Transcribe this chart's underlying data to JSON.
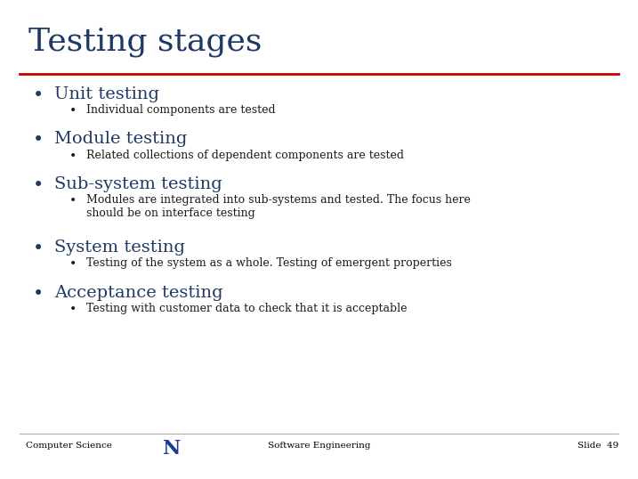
{
  "title": "Testing stages",
  "title_color": "#1F3864",
  "title_fontsize": 26,
  "separator_color": "#CC0000",
  "bg_color": "#FFFFFF",
  "bullet_color": "#1F3864",
  "sub_bullet_color": "#1a1a1a",
  "main_bullet_fontsize": 14,
  "sub_bullet_fontsize": 9,
  "items": [
    {
      "main": "Unit testing",
      "subs": [
        "Individual components are tested"
      ],
      "multiline": false
    },
    {
      "main": "Module testing",
      "subs": [
        "Related collections of dependent components are tested"
      ],
      "multiline": false
    },
    {
      "main": "Sub-system testing",
      "subs": [
        "Modules are integrated into sub-systems and tested. The focus here\nshould be on interface testing"
      ],
      "multiline": true
    },
    {
      "main": "System testing",
      "subs": [
        "Testing of the system as a whole. Testing of emergent properties"
      ],
      "multiline": false
    },
    {
      "main": "Acceptance testing",
      "subs": [
        "Testing with customer data to check that it is acceptable"
      ],
      "multiline": false
    }
  ],
  "footer_left": "Computer Science",
  "footer_center": "Software Engineering",
  "footer_right": "Slide  49",
  "footer_fontsize": 7.5,
  "footer_color": "#000000"
}
